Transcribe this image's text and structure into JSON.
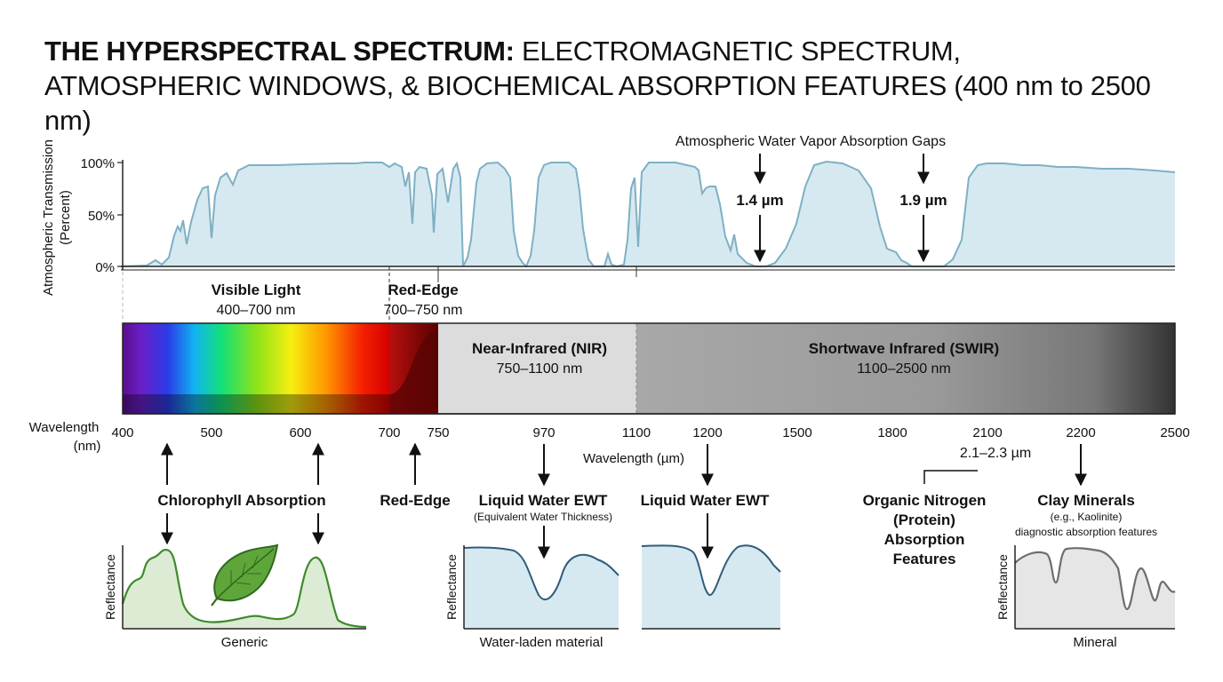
{
  "title": {
    "bold": "THE HYPERSPECTRAL SPECTRUM:",
    "rest": " ELECTROMAGNETIC SPECTRUM,",
    "line2": "ATMOSPHERIC WINDOWS, & BIOCHEMICAL ABSORPTION FEATURES (400 nm to 2500 nm)"
  },
  "transmission": {
    "ylabel_line1": "Atmospheric Transmission",
    "ylabel_line2": "(Percent)",
    "yticks": [
      "100%",
      "50%",
      "0%"
    ],
    "gap_title": "Atmospheric Water Vapor Absorption Gaps",
    "gap1": "1.4 µm",
    "gap2": "1.9 µm",
    "fill_color": "#d6e9f1",
    "line_color": "#7fb0c4"
  },
  "regions": {
    "visible": {
      "name": "Visible Light",
      "range": "400–700 nm"
    },
    "rededge": {
      "name": "Red-Edge",
      "range": "700–750 nm"
    },
    "nir": {
      "name": "Near-Infrared (NIR)",
      "range": "750–1100 nm"
    },
    "swir": {
      "name": "Shortwave Infrared (SWIR)",
      "range": "1100–2500 nm"
    }
  },
  "axis": {
    "label_line1": "Wavelength",
    "label_line2": "(nm)",
    "ticks": [
      "400",
      "500",
      "600",
      "700",
      "750",
      "970",
      "1100",
      "1200",
      "1500",
      "1800",
      "2100",
      "2200",
      "2500"
    ],
    "micron_label": "Wavelength (µm)"
  },
  "features": {
    "chlorophyll": "Chlorophyll Absorption",
    "rededge": "Red-Edge",
    "water1_title": "Liquid Water EWT",
    "water1_sub": "(Equivalent Water Thickness)",
    "water2_title": "Liquid Water EWT",
    "nitrogen_range": "2.1–2.3 µm",
    "nitrogen_line1": "Organic Nitrogen",
    "nitrogen_line2": "(Protein)",
    "nitrogen_line3": "Absorption",
    "nitrogen_line4": "Features",
    "clay_title": "Clay Minerals",
    "clay_sub1": "(e.g., Kaolinite)",
    "clay_sub2": "diagnostic absorption features"
  },
  "insets": {
    "ylabel": "Reflectance",
    "generic_caption": "Generic",
    "water_caption": "Water-laden material",
    "mineral_caption": "Mineral"
  },
  "icons": [
    "leaf-icon",
    "arrow-down-icon",
    "arrow-up-icon"
  ],
  "colors": {
    "vegetation": "#3f8a2c",
    "water": "#2f5d7a",
    "mineral": "#6e6e6e"
  }
}
